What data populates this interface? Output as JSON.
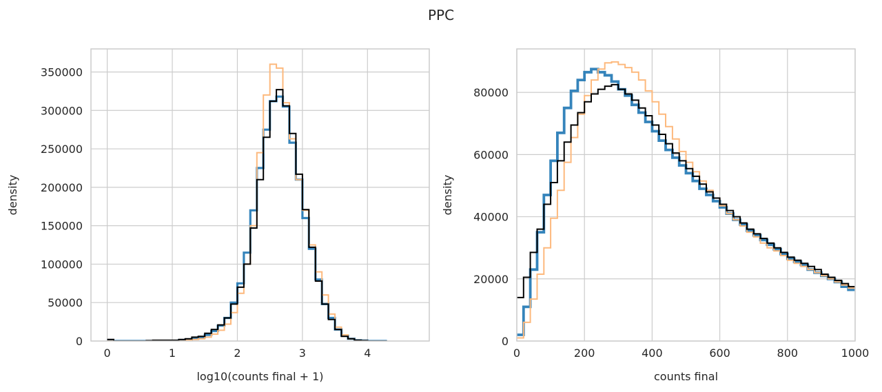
{
  "figure": {
    "title": "PPC"
  },
  "chart_data": [
    {
      "type": "line",
      "subtype": "step-histogram",
      "xlabel": "log10(counts final + 1)",
      "ylabel": "density",
      "xlim": [
        -0.25,
        4.95
      ],
      "ylim": [
        0,
        380000
      ],
      "xticks": [
        0,
        1,
        2,
        3,
        4
      ],
      "xtick_labels": [
        "0",
        "1",
        "2",
        "3",
        "4"
      ],
      "yticks": [
        0,
        50000,
        100000,
        150000,
        200000,
        250000,
        300000,
        350000
      ],
      "ytick_labels": [
        "0",
        "50000",
        "100000",
        "150000",
        "200000",
        "250000",
        "300000",
        "350000"
      ],
      "grid": true,
      "series": [
        {
          "color": "#1f77b4",
          "x": [
            0.0,
            0.1,
            0.2,
            0.3,
            0.4,
            0.5,
            0.6,
            0.7,
            0.8,
            0.9,
            1.0,
            1.1,
            1.2,
            1.3,
            1.4,
            1.5,
            1.6,
            1.7,
            1.8,
            1.9,
            2.0,
            2.1,
            2.2,
            2.3,
            2.4,
            2.5,
            2.6,
            2.7,
            2.8,
            2.9,
            3.0,
            3.1,
            3.2,
            3.3,
            3.4,
            3.5,
            3.6,
            3.7,
            3.8,
            3.9,
            4.0,
            4.1,
            4.2
          ],
          "y": [
            0,
            0,
            0,
            0,
            0,
            0,
            0,
            0,
            0,
            0,
            0,
            1000,
            2000,
            3000,
            5000,
            8000,
            13000,
            20000,
            30000,
            50000,
            75000,
            115000,
            170000,
            225000,
            275000,
            312000,
            318000,
            305000,
            258000,
            210000,
            160000,
            120000,
            80000,
            48000,
            30000,
            15000,
            7000,
            3000,
            1000,
            500,
            0,
            0,
            0
          ]
        },
        {
          "color": "#fdb97d",
          "x": [
            0.0,
            0.1,
            0.2,
            0.3,
            0.4,
            0.5,
            0.6,
            0.7,
            0.8,
            0.9,
            1.0,
            1.1,
            1.2,
            1.3,
            1.4,
            1.5,
            1.6,
            1.7,
            1.8,
            1.9,
            2.0,
            2.1,
            2.2,
            2.3,
            2.4,
            2.5,
            2.6,
            2.7,
            2.8,
            2.9,
            3.0,
            3.1,
            3.2,
            3.3,
            3.4,
            3.5,
            3.6,
            3.7,
            3.8,
            3.9,
            4.0,
            4.1,
            4.2
          ],
          "y": [
            0,
            0,
            0,
            0,
            0,
            0,
            0,
            0,
            0,
            0,
            0,
            0,
            1000,
            2000,
            3000,
            5000,
            9000,
            14000,
            22000,
            37000,
            62000,
            100000,
            150000,
            245000,
            320000,
            360000,
            355000,
            310000,
            263000,
            210000,
            170000,
            125000,
            90000,
            60000,
            35000,
            18000,
            8000,
            3000,
            1000,
            500,
            0,
            0,
            0
          ]
        },
        {
          "color": "#000000",
          "x": [
            0.0,
            0.1,
            0.2,
            0.3,
            0.4,
            0.5,
            0.6,
            0.7,
            0.8,
            0.9,
            1.0,
            1.1,
            1.2,
            1.3,
            1.4,
            1.5,
            1.6,
            1.7,
            1.8,
            1.9,
            2.0,
            2.1,
            2.2,
            2.3,
            2.4,
            2.5,
            2.6,
            2.7,
            2.8,
            2.9,
            3.0,
            3.1,
            3.2,
            3.3,
            3.4,
            3.5,
            3.6,
            3.7,
            3.8,
            3.9,
            4.0,
            4.1,
            4.2
          ],
          "y": [
            2000,
            0,
            0,
            0,
            0,
            0,
            500,
            1000,
            1000,
            1000,
            1000,
            2000,
            3000,
            5000,
            6000,
            10000,
            15000,
            21000,
            30000,
            48000,
            70000,
            100000,
            147000,
            210000,
            265000,
            312000,
            327000,
            306000,
            270000,
            217000,
            171000,
            122000,
            78000,
            48000,
            28000,
            15000,
            6000,
            3000,
            1000,
            500,
            0,
            0,
            0
          ]
        }
      ]
    },
    {
      "type": "line",
      "subtype": "step-histogram",
      "xlabel": "counts final",
      "ylabel": "density",
      "xlim": [
        0,
        1000
      ],
      "ylim": [
        0,
        94000
      ],
      "xticks": [
        0,
        200,
        400,
        600,
        800,
        1000
      ],
      "xtick_labels": [
        "0",
        "200",
        "400",
        "600",
        "800",
        "1000"
      ],
      "yticks": [
        0,
        20000,
        40000,
        60000,
        80000
      ],
      "ytick_labels": [
        "0",
        "20000",
        "40000",
        "60000",
        "80000"
      ],
      "grid": true,
      "series": [
        {
          "color": "#1f77b4",
          "x": [
            0,
            20,
            40,
            60,
            80,
            100,
            120,
            140,
            160,
            180,
            200,
            220,
            240,
            260,
            280,
            300,
            320,
            340,
            360,
            380,
            400,
            420,
            440,
            460,
            480,
            500,
            520,
            540,
            560,
            580,
            600,
            620,
            640,
            660,
            680,
            700,
            720,
            740,
            760,
            780,
            800,
            820,
            840,
            860,
            880,
            900,
            920,
            940,
            960,
            980
          ],
          "y": [
            2000,
            11000,
            23000,
            35000,
            47000,
            58000,
            67000,
            75000,
            80500,
            84000,
            86500,
            87500,
            86500,
            85500,
            83500,
            81000,
            79000,
            76000,
            73500,
            70500,
            67500,
            64500,
            61500,
            59000,
            56500,
            54000,
            51500,
            49000,
            47000,
            45000,
            43000,
            41000,
            39000,
            37500,
            35500,
            34000,
            32500,
            31000,
            29500,
            28000,
            26500,
            25500,
            24500,
            23000,
            22000,
            21000,
            20000,
            19000,
            17500,
            16500
          ]
        },
        {
          "color": "#fdb97d",
          "x": [
            0,
            20,
            40,
            60,
            80,
            100,
            120,
            140,
            160,
            180,
            200,
            220,
            240,
            260,
            280,
            300,
            320,
            340,
            360,
            380,
            400,
            420,
            440,
            460,
            480,
            500,
            520,
            540,
            560,
            580,
            600,
            620,
            640,
            660,
            680,
            700,
            720,
            740,
            760,
            780,
            800,
            820,
            840,
            860,
            880,
            900,
            920,
            940,
            960,
            980
          ],
          "y": [
            1000,
            6000,
            13500,
            21500,
            30000,
            39500,
            48500,
            57500,
            65500,
            73000,
            79000,
            84000,
            87500,
            89500,
            89800,
            89000,
            88000,
            86500,
            84000,
            80500,
            77000,
            73000,
            69000,
            65000,
            61000,
            57500,
            54500,
            51500,
            48500,
            46000,
            43500,
            41000,
            39000,
            37000,
            35000,
            33500,
            31500,
            30000,
            29000,
            27500,
            26000,
            25000,
            24000,
            23000,
            22000,
            21000,
            20000,
            19000,
            18000,
            17000
          ]
        },
        {
          "color": "#000000",
          "x": [
            0,
            20,
            40,
            60,
            80,
            100,
            120,
            140,
            160,
            180,
            200,
            220,
            240,
            260,
            280,
            300,
            320,
            340,
            360,
            380,
            400,
            420,
            440,
            460,
            480,
            500,
            520,
            540,
            560,
            580,
            600,
            620,
            640,
            660,
            680,
            700,
            720,
            740,
            760,
            780,
            800,
            820,
            840,
            860,
            880,
            900,
            920,
            940,
            960,
            980
          ],
          "y": [
            14000,
            20500,
            28500,
            36000,
            44000,
            51000,
            58000,
            64000,
            69500,
            73500,
            77000,
            79500,
            81000,
            82000,
            82500,
            81000,
            79500,
            77500,
            75000,
            72500,
            69500,
            66500,
            63500,
            60500,
            58000,
            55500,
            53000,
            50500,
            48000,
            46000,
            44000,
            42000,
            40000,
            38000,
            36000,
            34500,
            33000,
            31500,
            30000,
            28500,
            27000,
            26000,
            25000,
            24000,
            23000,
            21500,
            20500,
            19500,
            18500,
            17500
          ]
        }
      ]
    }
  ]
}
